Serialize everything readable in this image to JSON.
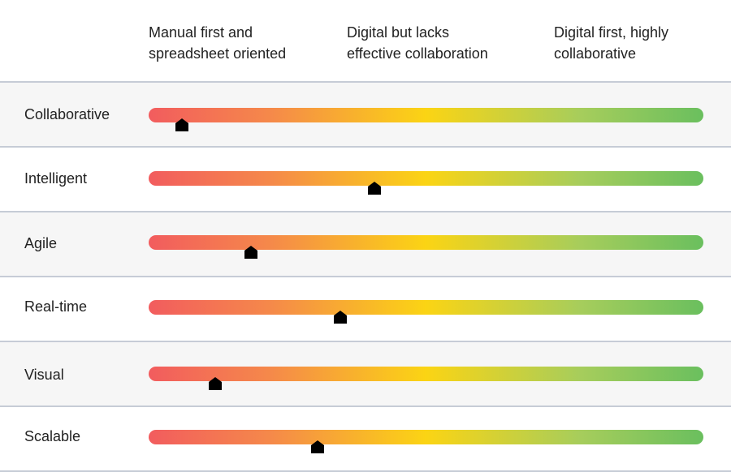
{
  "chart_data": {
    "type": "gauge-scale",
    "scale_labels": [
      "Manual first and\nspreadsheet oriented",
      "Digital but lacks\neffective collaboration",
      "Digital first, highly\ncollaborative"
    ],
    "xlim": [
      0,
      1
    ],
    "rows": [
      {
        "label": "Collaborative",
        "value": 0.06
      },
      {
        "label": "Intelligent",
        "value": 0.407
      },
      {
        "label": "Agile",
        "value": 0.185
      },
      {
        "label": "Real-time",
        "value": 0.345
      },
      {
        "label": "Visual",
        "value": 0.12
      },
      {
        "label": "Scalable",
        "value": 0.305
      }
    ],
    "colors": {
      "low": "#f25c5e",
      "mid": "#fbd414",
      "high": "#6abf5e",
      "marker": "#000000",
      "row_shade": "#f6f6f6",
      "divider": "#c6ccd6"
    }
  }
}
